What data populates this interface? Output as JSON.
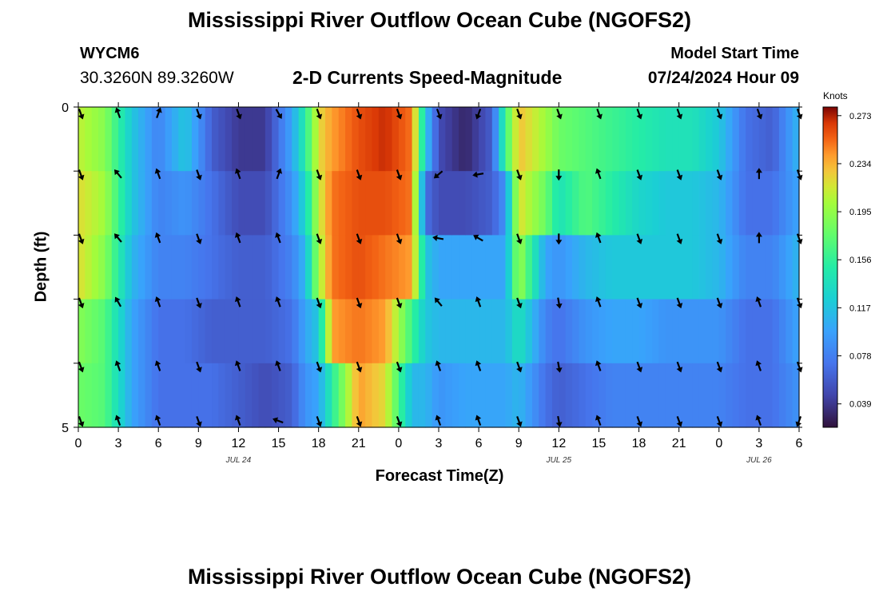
{
  "header": {
    "title_top": "Mississippi River Outflow Ocean Cube (NGOFS2)",
    "title_bottom": "Mississippi River Outflow Ocean Cube (NGOFS2)",
    "station_id": "WYCM6",
    "station_coords": "30.3260N  89.3260W",
    "chart_title": "2-D Currents Speed-Magnitude",
    "model_label": "Model Start Time",
    "model_time": "07/24/2024 Hour 09"
  },
  "chart_data": {
    "type": "heatmap",
    "title": "2-D Currents Speed-Magnitude",
    "xlabel": "Forecast Time(Z)",
    "ylabel": "Depth (ft)",
    "x_tick_labels": [
      "0",
      "3",
      "6",
      "9",
      "12",
      "15",
      "18",
      "21",
      "0",
      "3",
      "6",
      "9",
      "12",
      "15",
      "18",
      "21",
      "0",
      "3",
      "6"
    ],
    "date_labels": [
      {
        "label": "JUL 24",
        "hour_index": 12
      },
      {
        "label": "JUL 25",
        "hour_index": 36
      },
      {
        "label": "JUL 26",
        "hour_index": 51
      }
    ],
    "y_ticks": [
      {
        "value": 0,
        "label": "0"
      },
      {
        "value": 1,
        "label": ""
      },
      {
        "value": 2,
        "label": ""
      },
      {
        "value": 3,
        "label": ""
      },
      {
        "value": 4,
        "label": ""
      },
      {
        "value": 5,
        "label": "5"
      }
    ],
    "ylim": [
      0,
      5
    ],
    "xlim_hours": [
      0,
      54
    ],
    "depth_layers": 5,
    "colorbar": {
      "unit": "Knots",
      "min": 0.02,
      "max": 0.28,
      "ticks": [
        "0.273",
        "0.234",
        "0.195",
        "0.156",
        "0.117",
        "0.078",
        "0.039"
      ],
      "tick_values": [
        0.273,
        0.234,
        0.195,
        0.156,
        0.117,
        0.078,
        0.039
      ]
    },
    "speed_keyframes_knots": [
      {
        "hour": 0,
        "layers": [
          0.21,
          0.22,
          0.22,
          0.19,
          0.18
        ]
      },
      {
        "hour": 2,
        "layers": [
          0.19,
          0.2,
          0.19,
          0.17,
          0.17
        ]
      },
      {
        "hour": 4,
        "layers": [
          0.12,
          0.12,
          0.11,
          0.1,
          0.1
        ]
      },
      {
        "hour": 6,
        "layers": [
          0.08,
          0.08,
          0.08,
          0.07,
          0.07
        ]
      },
      {
        "hour": 8,
        "layers": [
          0.12,
          0.09,
          0.08,
          0.07,
          0.07
        ]
      },
      {
        "hour": 10,
        "layers": [
          0.06,
          0.07,
          0.07,
          0.06,
          0.07
        ]
      },
      {
        "hour": 12,
        "layers": [
          0.04,
          0.05,
          0.06,
          0.06,
          0.06
        ]
      },
      {
        "hour": 14,
        "layers": [
          0.04,
          0.05,
          0.06,
          0.06,
          0.05
        ]
      },
      {
        "hour": 16,
        "layers": [
          0.1,
          0.09,
          0.08,
          0.07,
          0.06
        ]
      },
      {
        "hour": 17,
        "layers": [
          0.15,
          0.13,
          0.11,
          0.1,
          0.09
        ]
      },
      {
        "hour": 18,
        "layers": [
          0.22,
          0.21,
          0.2,
          0.12,
          0.1
        ]
      },
      {
        "hour": 19,
        "layers": [
          0.24,
          0.25,
          0.25,
          0.24,
          0.15
        ]
      },
      {
        "hour": 21,
        "layers": [
          0.26,
          0.26,
          0.26,
          0.25,
          0.24
        ]
      },
      {
        "hour": 23,
        "layers": [
          0.27,
          0.26,
          0.25,
          0.24,
          0.22
        ]
      },
      {
        "hour": 25,
        "layers": [
          0.25,
          0.25,
          0.24,
          0.16,
          0.11
        ]
      },
      {
        "hour": 26,
        "layers": [
          0.12,
          0.07,
          0.12,
          0.12,
          0.11
        ]
      },
      {
        "hour": 27,
        "layers": [
          0.05,
          0.05,
          0.1,
          0.11,
          0.09
        ]
      },
      {
        "hour": 29,
        "layers": [
          0.03,
          0.05,
          0.1,
          0.11,
          0.1
        ]
      },
      {
        "hour": 31,
        "layers": [
          0.06,
          0.06,
          0.1,
          0.11,
          0.1
        ]
      },
      {
        "hour": 32,
        "layers": [
          0.16,
          0.09,
          0.1,
          0.11,
          0.1
        ]
      },
      {
        "hour": 33,
        "layers": [
          0.23,
          0.22,
          0.2,
          0.14,
          0.11
        ]
      },
      {
        "hour": 35,
        "layers": [
          0.2,
          0.18,
          0.1,
          0.08,
          0.07
        ]
      },
      {
        "hour": 36,
        "layers": [
          0.18,
          0.14,
          0.09,
          0.07,
          0.06
        ]
      },
      {
        "hour": 38,
        "layers": [
          0.17,
          0.17,
          0.11,
          0.09,
          0.07
        ]
      },
      {
        "hour": 40,
        "layers": [
          0.16,
          0.15,
          0.12,
          0.1,
          0.08
        ]
      },
      {
        "hour": 42,
        "layers": [
          0.15,
          0.13,
          0.12,
          0.1,
          0.08
        ]
      },
      {
        "hour": 44,
        "layers": [
          0.14,
          0.12,
          0.12,
          0.09,
          0.08
        ]
      },
      {
        "hour": 46,
        "layers": [
          0.14,
          0.12,
          0.12,
          0.09,
          0.08
        ]
      },
      {
        "hour": 48,
        "layers": [
          0.12,
          0.11,
          0.11,
          0.09,
          0.08
        ]
      },
      {
        "hour": 50,
        "layers": [
          0.07,
          0.07,
          0.08,
          0.07,
          0.07
        ]
      },
      {
        "hour": 52,
        "layers": [
          0.06,
          0.07,
          0.08,
          0.07,
          0.07
        ]
      },
      {
        "hour": 54,
        "layers": [
          0.11,
          0.1,
          0.11,
          0.1,
          0.09
        ]
      }
    ],
    "arrow_hours": [
      0,
      3,
      6,
      9,
      12,
      15,
      18,
      21,
      24,
      27,
      30,
      33,
      36,
      39,
      42,
      45,
      48,
      51,
      54
    ],
    "arrow_directions_deg": [
      [
        160,
        -20,
        20,
        160,
        160,
        150,
        160,
        160,
        160,
        160,
        200,
        160,
        160,
        160,
        160,
        160,
        160,
        160,
        160
      ],
      [
        160,
        -40,
        -20,
        160,
        -20,
        20,
        160,
        160,
        160,
        -130,
        -100,
        160,
        180,
        -20,
        160,
        160,
        160,
        0,
        160
      ],
      [
        160,
        -40,
        -20,
        160,
        -20,
        -20,
        160,
        160,
        160,
        -80,
        -60,
        160,
        180,
        -20,
        160,
        160,
        160,
        0,
        160
      ],
      [
        160,
        -30,
        -20,
        160,
        -20,
        -20,
        160,
        160,
        160,
        -40,
        -20,
        160,
        170,
        -20,
        160,
        160,
        160,
        -20,
        160
      ],
      [
        160,
        -20,
        -20,
        160,
        -20,
        -20,
        160,
        160,
        160,
        -20,
        -20,
        160,
        170,
        -20,
        160,
        160,
        160,
        -20,
        160
      ],
      [
        160,
        -20,
        -20,
        160,
        -20,
        -70,
        160,
        160,
        160,
        -20,
        -20,
        160,
        170,
        -20,
        160,
        160,
        160,
        -20,
        200
      ]
    ]
  }
}
